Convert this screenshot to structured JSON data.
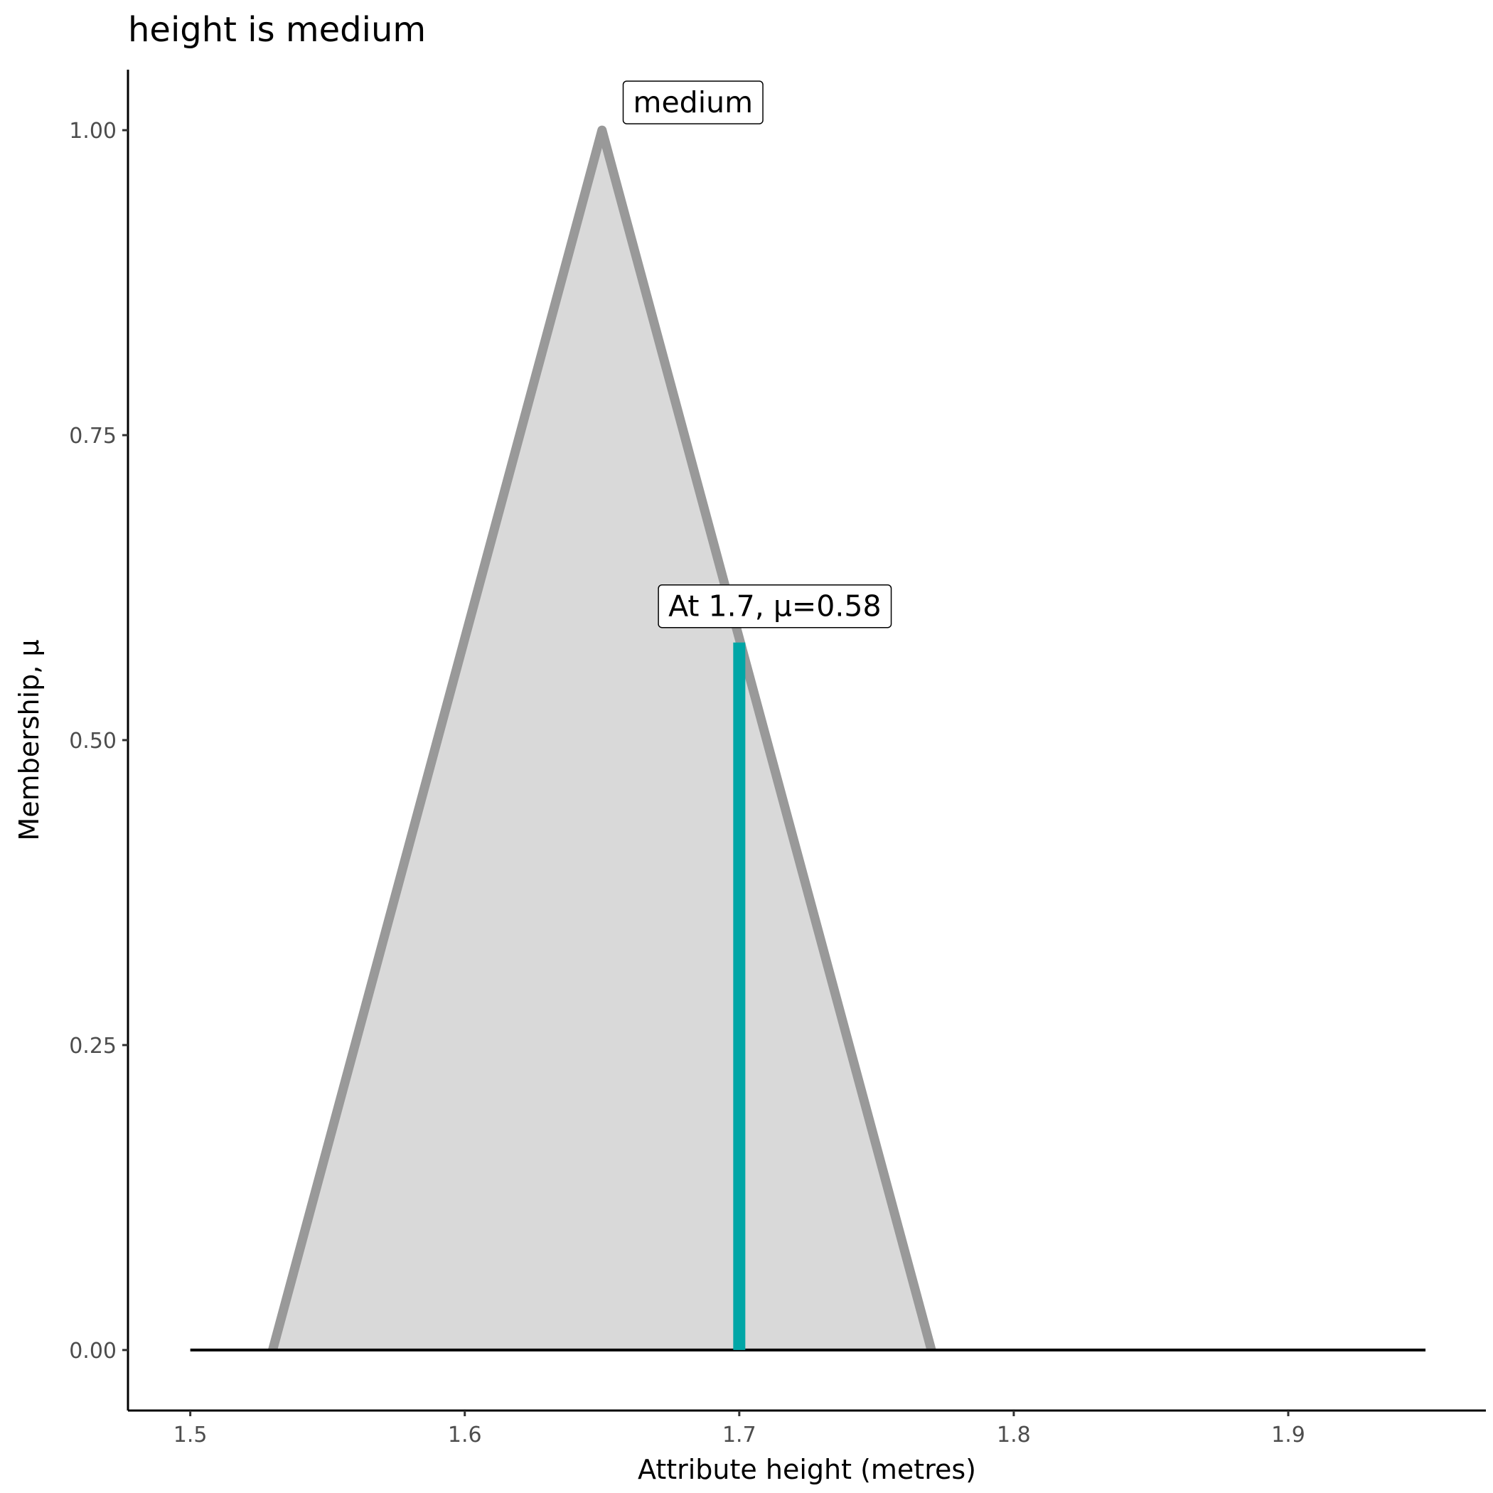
{
  "chart_data": {
    "type": "area",
    "title": "height is medium",
    "x_label": "Attribute height (metres)",
    "y_label": "Membership, μ",
    "xlim": [
      1.4773,
      1.972
    ],
    "ylim": [
      -0.0496,
      1.0496
    ],
    "xticks": [
      1.5,
      1.6,
      1.7,
      1.8,
      1.9
    ],
    "yticks": [
      {
        "value": 0,
        "label": "0.00"
      },
      {
        "value": 0.25,
        "label": "0.25"
      },
      {
        "value": 0.5,
        "label": "0.50"
      },
      {
        "value": 0.75,
        "label": "0.75"
      },
      {
        "value": 1,
        "label": "1.00"
      }
    ],
    "baseline": {
      "x": [
        1.5,
        1.95
      ],
      "values": [
        0,
        0
      ],
      "color": "#000000"
    },
    "series": [
      {
        "name": "medium",
        "color": "#999999",
        "fill": "#d9d9d9",
        "x": [
          1.53,
          1.65,
          1.77
        ],
        "values": [
          0,
          1,
          0
        ]
      }
    ],
    "marker": {
      "x": 1.7,
      "value": 0.58,
      "label": "At 1.7, μ=0.58",
      "color": "#00a6a6"
    }
  }
}
